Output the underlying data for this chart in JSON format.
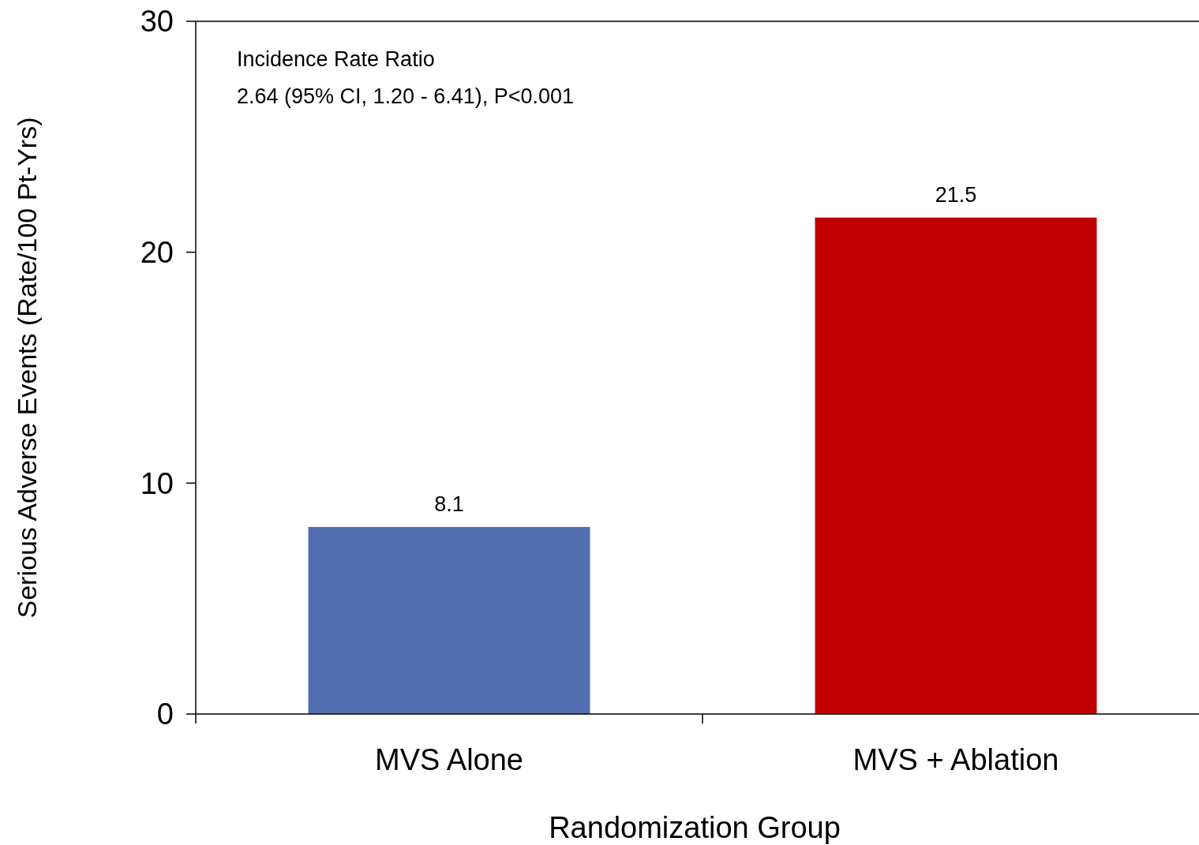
{
  "chart_data": {
    "type": "bar",
    "xlabel": "Randomization Group",
    "ylabel": "Serious Adverse Events (Rate/100 Pt-Yrs)",
    "categories": [
      "MVS Alone",
      "MVS + Ablation"
    ],
    "values": [
      8.1,
      21.5
    ],
    "colors": [
      "#536eb0",
      "#c00000"
    ],
    "ylim": [
      0,
      30
    ],
    "yticks": [
      0,
      10,
      20,
      30
    ],
    "data_labels": true,
    "annotations": [
      "Incidence Rate Ratio",
      "2.64 (95% CI, 1.20 - 6.41), P<0.001"
    ]
  }
}
